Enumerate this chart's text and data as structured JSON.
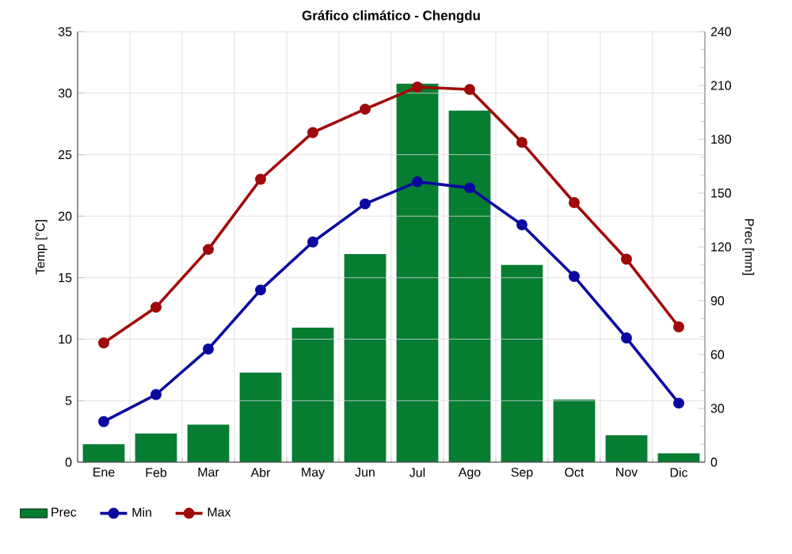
{
  "chart_data": {
    "type": "line",
    "title": "Gráfico climático - Chengdu",
    "ylabel": "Temp [°C]",
    "y2label": "Prec [mm]",
    "categories": [
      "Ene",
      "Feb",
      "Mar",
      "Abr",
      "May",
      "Jun",
      "Jul",
      "Ago",
      "Sep",
      "Oct",
      "Nov",
      "Dic"
    ],
    "series": [
      {
        "name": "Prec",
        "type": "bar",
        "axis": "y2",
        "color": "#077d32",
        "values": [
          10,
          16,
          21,
          50,
          75,
          116,
          211,
          196,
          110,
          35,
          15,
          5
        ]
      },
      {
        "name": "Min",
        "color": "#0a0aa0",
        "values": [
          3.3,
          5.5,
          9.2,
          14,
          17.9,
          21,
          22.8,
          22.3,
          19.3,
          15.1,
          10.1,
          4.8
        ]
      },
      {
        "name": "Max",
        "color": "#a00a0a",
        "values": [
          9.7,
          12.6,
          17.3,
          23,
          26.8,
          28.7,
          30.5,
          30.3,
          26,
          21.1,
          16.5,
          11
        ]
      }
    ],
    "ylim": [
      0,
      35
    ],
    "yticks": [
      0,
      5,
      10,
      15,
      20,
      25,
      30,
      35
    ],
    "y2lim": [
      0,
      240
    ],
    "y2ticks": [
      0,
      30,
      60,
      90,
      120,
      150,
      180,
      210,
      240
    ],
    "grid": true,
    "legend": "bottom left",
    "marker": "circle"
  }
}
